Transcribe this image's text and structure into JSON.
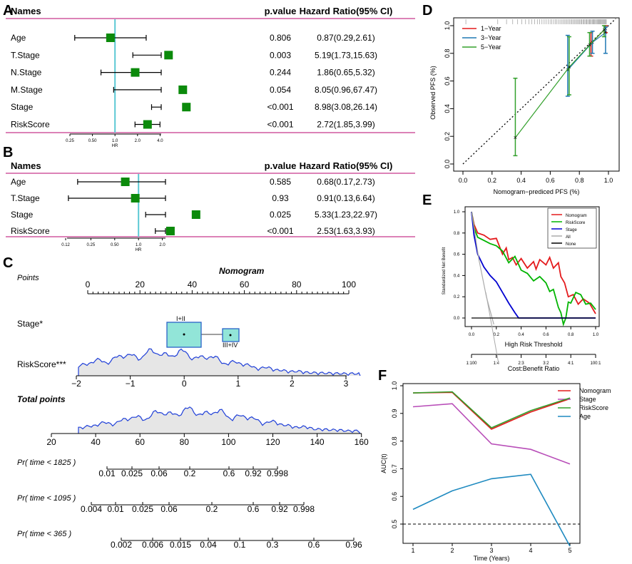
{
  "panel_labels": {
    "A": "A",
    "B": "B",
    "C": "C",
    "D": "D",
    "E": "E",
    "F": "F"
  },
  "chart_data": [
    {
      "id": "A",
      "type": "forest",
      "headers": {
        "names": "Names",
        "pvalue": "p.value",
        "hr": "Hazard Ratio(95% CI)"
      },
      "rows": [
        {
          "name": "Age",
          "p": "0.806",
          "hr_text": "0.87(0.29,2.61)",
          "hr": 0.87,
          "lo": 0.29,
          "hi": 2.61
        },
        {
          "name": "T.Stage",
          "p": "0.003",
          "hr_text": "5.19(1.73,15.63)",
          "hr": 5.19,
          "lo": 1.73,
          "hi": 15.63
        },
        {
          "name": "N.Stage",
          "p": "0.244",
          "hr_text": "1.86(0.65,5.32)",
          "hr": 1.86,
          "lo": 0.65,
          "hi": 5.32
        },
        {
          "name": "M.Stage",
          "p": "0.054",
          "hr_text": "8.05(0.96,67.47)",
          "hr": 8.05,
          "lo": 0.96,
          "hi": 67.47
        },
        {
          "name": "Stage",
          "p": "<0.001",
          "hr_text": "8.98(3.08,26.14)",
          "hr": 8.98,
          "lo": 3.08,
          "hi": 26.14
        },
        {
          "name": "RiskScore",
          "p": "<0.001",
          "hr_text": "2.72(1.85,3.99)",
          "hr": 2.72,
          "lo": 1.85,
          "hi": 3.99
        }
      ],
      "axis_ticks": [
        "0.25",
        "0.50",
        "1.0",
        "2.0",
        "4.0"
      ],
      "axis_label": "HR"
    },
    {
      "id": "B",
      "type": "forest",
      "headers": {
        "names": "Names",
        "pvalue": "p.value",
        "hr": "Hazard Ratio(95% CI)"
      },
      "rows": [
        {
          "name": "Age",
          "p": "0.585",
          "hr_text": "0.68(0.17,2.73)",
          "hr": 0.68,
          "lo": 0.17,
          "hi": 2.73
        },
        {
          "name": "T.Stage",
          "p": "0.93",
          "hr_text": "0.91(0.13,6.64)",
          "hr": 0.91,
          "lo": 0.13,
          "hi": 6.64
        },
        {
          "name": "Stage",
          "p": "0.025",
          "hr_text": "5.33(1.23,22.97)",
          "hr": 5.33,
          "lo": 1.23,
          "hi": 22.97
        },
        {
          "name": "RiskScore",
          "p": "<0.001",
          "hr_text": "2.53(1.63,3.93)",
          "hr": 2.53,
          "lo": 1.63,
          "hi": 3.93
        }
      ],
      "axis_ticks": [
        "0.12",
        "0.25",
        "0.50",
        "1.0",
        "2.0"
      ],
      "axis_label": "HR"
    },
    {
      "id": "C",
      "type": "nomogram",
      "title": "Nomogram",
      "points": {
        "label": "Points",
        "ticks": [
          "0",
          "20",
          "40",
          "60",
          "80",
          "100"
        ]
      },
      "stage": {
        "label": "Stage*",
        "cat1": "I+II",
        "cat2": "III+IV"
      },
      "riskscore": {
        "label": "RiskScore***",
        "ticks": [
          "−2",
          "−1",
          "0",
          "1",
          "2",
          "3"
        ]
      },
      "total": {
        "label": "Total points",
        "ticks": [
          "20",
          "40",
          "60",
          "80",
          "100",
          "120",
          "140",
          "160"
        ]
      },
      "pr1825": {
        "label": "Pr( time < 1825 )",
        "ticks": [
          "0.01",
          "0.025",
          "0.06",
          "0.2",
          "0.6",
          "0.92",
          "0.998"
        ]
      },
      "pr1095": {
        "label": "Pr( time < 1095 )",
        "ticks": [
          "0.004",
          "0.01",
          "0.025",
          "0.06",
          "0.2",
          "0.6",
          "0.92",
          "0.998"
        ]
      },
      "pr365": {
        "label": "Pr( time < 365 )",
        "ticks": [
          "0.002",
          "0.006",
          "0.015",
          "0.04",
          "0.1",
          "0.3",
          "0.6",
          "0.96"
        ]
      }
    },
    {
      "id": "D",
      "type": "calibration",
      "xlabel": "Nomogram−prediced PFS (%)",
      "ylabel": "Observed PFS (%)",
      "xlim": [
        0,
        1
      ],
      "ylim": [
        0,
        1
      ],
      "xticks": [
        "0.0",
        "0.2",
        "0.4",
        "0.6",
        "0.8",
        "1.0"
      ],
      "yticks": [
        "0.0",
        "0.2",
        "0.4",
        "0.6",
        "0.8",
        "1.0"
      ],
      "series": [
        {
          "name": "1−Year",
          "color": "#e41a1c",
          "points": [
            {
              "x": 0.88,
              "y": 0.87,
              "lo": 0.78,
              "hi": 0.95
            },
            {
              "x": 0.98,
              "y": 0.98,
              "lo": 0.95,
              "hi": 1.0
            }
          ]
        },
        {
          "name": "3−Year",
          "color": "#1f78b4",
          "points": [
            {
              "x": 0.72,
              "y": 0.68,
              "lo": 0.49,
              "hi": 0.93
            },
            {
              "x": 0.89,
              "y": 0.88,
              "lo": 0.8,
              "hi": 0.96
            },
            {
              "x": 0.98,
              "y": 0.95,
              "lo": 0.8,
              "hi": 0.99
            }
          ]
        },
        {
          "name": "5−Year",
          "color": "#33a02c",
          "points": [
            {
              "x": 0.36,
              "y": 0.19,
              "lo": 0.06,
              "hi": 0.62
            },
            {
              "x": 0.73,
              "y": 0.7,
              "lo": 0.5,
              "hi": 0.92
            },
            {
              "x": 0.87,
              "y": 0.86,
              "lo": 0.78,
              "hi": 0.95
            },
            {
              "x": 0.97,
              "y": 0.97,
              "lo": 0.92,
              "hi": 1.0
            }
          ]
        }
      ]
    },
    {
      "id": "E",
      "type": "line",
      "xlabel": "High Risk Threshold",
      "ylabel": "Standardized Net Benefit",
      "xticks": [
        "0.0",
        "0.2",
        "0.4",
        "0.6",
        "0.8",
        "1.0"
      ],
      "yticks": [
        "0.0",
        "0.2",
        "0.4",
        "0.6",
        "0.8",
        "1.0"
      ],
      "cost_ticks": [
        "1:100",
        "1:4",
        "2:3",
        "3:2",
        "4:1",
        "100:1"
      ],
      "cost_label": "Cost:Benefit Ratio",
      "series": [
        {
          "name": "Nomogram",
          "color": "#e41a1c",
          "x": [
            0,
            0.02,
            0.05,
            0.1,
            0.15,
            0.2,
            0.25,
            0.28,
            0.3,
            0.33,
            0.36,
            0.4,
            0.45,
            0.5,
            0.52,
            0.55,
            0.6,
            0.63,
            0.66,
            0.7,
            0.72,
            0.75,
            0.78,
            0.82,
            0.86,
            0.9,
            0.95,
            1.0
          ],
          "y": [
            1.0,
            0.88,
            0.8,
            0.78,
            0.74,
            0.75,
            0.6,
            0.66,
            0.55,
            0.57,
            0.5,
            0.56,
            0.47,
            0.53,
            0.46,
            0.55,
            0.5,
            0.57,
            0.47,
            0.52,
            0.39,
            0.33,
            0.2,
            0.22,
            0.13,
            0.18,
            0.14,
            0.04
          ]
        },
        {
          "name": "RiskScore",
          "color": "#00b400",
          "x": [
            0,
            0.02,
            0.05,
            0.1,
            0.15,
            0.2,
            0.25,
            0.3,
            0.35,
            0.4,
            0.45,
            0.5,
            0.55,
            0.6,
            0.63,
            0.66,
            0.7,
            0.72,
            0.74,
            0.76,
            0.78,
            0.8,
            0.84,
            0.88,
            0.92,
            0.96,
            1.0
          ],
          "y": [
            1.0,
            0.85,
            0.76,
            0.73,
            0.7,
            0.68,
            0.63,
            0.52,
            0.58,
            0.45,
            0.42,
            0.35,
            0.39,
            0.33,
            0.25,
            0.27,
            0.1,
            0.05,
            -0.06,
            0.0,
            0.15,
            0.14,
            0.24,
            0.22,
            0.13,
            0.14,
            0.08
          ]
        },
        {
          "name": "Stage",
          "color": "#0000d0",
          "x": [
            0,
            0.02,
            0.05,
            0.1,
            0.15,
            0.2,
            0.25,
            0.3,
            0.35,
            0.38,
            1.0
          ],
          "y": [
            1.0,
            0.78,
            0.6,
            0.48,
            0.4,
            0.34,
            0.24,
            0.14,
            0.05,
            0.0,
            0.0
          ]
        },
        {
          "name": "All",
          "color": "#aaaaaa",
          "x": [
            0,
            0.02,
            0.06,
            0.12,
            0.18
          ],
          "y": [
            1.0,
            0.85,
            0.55,
            0.2,
            -0.25
          ]
        },
        {
          "name": "None",
          "color": "#000000",
          "x": [
            0,
            1
          ],
          "y": [
            0,
            0
          ]
        }
      ]
    },
    {
      "id": "F",
      "type": "line",
      "xlabel": "Time (Years)",
      "ylabel": "AUC(t)",
      "x": [
        1,
        2,
        3,
        4,
        5
      ],
      "xticks": [
        "1",
        "2",
        "3",
        "4",
        "5"
      ],
      "yticks": [
        "0.5",
        "0.6",
        "0.7",
        "0.8",
        "0.9",
        "1.0"
      ],
      "ylim": [
        0.42,
        1.02
      ],
      "ref_line": 0.5,
      "series": [
        {
          "name": "Nomogram",
          "color": "#e41a1c",
          "values": [
            0.974,
            0.976,
            0.843,
            0.905,
            0.953
          ]
        },
        {
          "name": "Stage",
          "color": "#b84db8",
          "values": [
            0.924,
            0.935,
            0.79,
            0.77,
            0.717
          ]
        },
        {
          "name": "RiskScore",
          "color": "#33a02c",
          "values": [
            0.974,
            0.978,
            0.848,
            0.91,
            0.956
          ]
        },
        {
          "name": "Age",
          "color": "#1f8ac0",
          "values": [
            0.553,
            0.62,
            0.664,
            0.68,
            0.42
          ]
        }
      ]
    }
  ]
}
